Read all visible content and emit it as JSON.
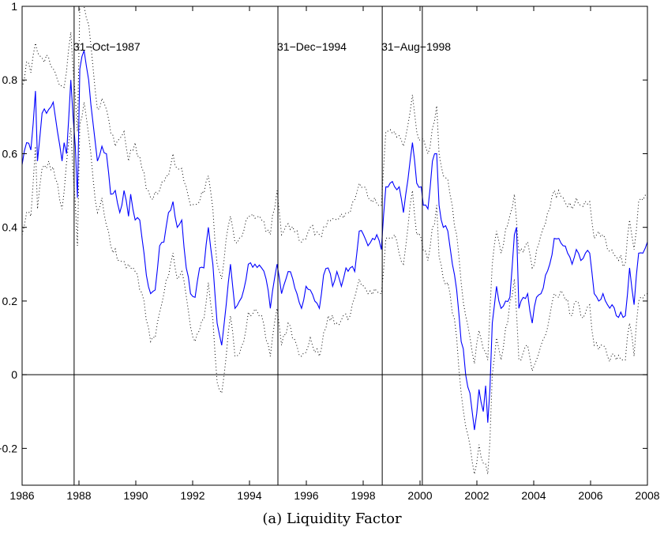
{
  "caption": "(a) Liquidity Factor",
  "colors": {
    "estimate": "#0000ff",
    "band": "#000000",
    "axes": "#000000"
  },
  "chart_data": {
    "type": "line",
    "title": "",
    "xlabel": "",
    "ylabel": "",
    "xlim": [
      1986,
      2008
    ],
    "ylim": [
      -0.3,
      1.0
    ],
    "xticks": [
      1986,
      1988,
      1990,
      1992,
      1994,
      1996,
      1998,
      2000,
      2002,
      2004,
      2006,
      2008
    ],
    "yticks": [
      -0.2,
      0,
      0.2,
      0.4,
      0.6,
      0.8,
      1
    ],
    "ytick_labels": [
      "−0.2",
      "0",
      "0.2",
      "0.4",
      "0.6",
      "0.8",
      "1"
    ],
    "grid": false,
    "zero_line": 0,
    "events": [
      {
        "x": 1987.83,
        "label": "31−Oct−1987"
      },
      {
        "x": 1995.0,
        "label": "31−Dec−1994"
      },
      {
        "x": 1998.67,
        "label": "31−Aug−1998"
      },
      {
        "x": 2000.08,
        "label": ""
      }
    ],
    "anchors": {
      "estimate": [
        [
          1986,
          0.57
        ],
        [
          1986.17,
          0.63
        ],
        [
          1986.33,
          0.61
        ],
        [
          1986.5,
          0.77
        ],
        [
          1986.58,
          0.58
        ],
        [
          1986.75,
          0.71
        ],
        [
          1987,
          0.72
        ],
        [
          1987.17,
          0.74
        ],
        [
          1987.33,
          0.66
        ],
        [
          1987.5,
          0.58
        ],
        [
          1987.58,
          0.63
        ],
        [
          1987.67,
          0.6
        ],
        [
          1987.83,
          0.8
        ],
        [
          1988,
          0.62
        ],
        [
          1988.08,
          0.48
        ],
        [
          1988.17,
          0.83
        ],
        [
          1988.33,
          0.88
        ],
        [
          1988.5,
          0.8
        ],
        [
          1988.67,
          0.68
        ],
        [
          1988.83,
          0.58
        ],
        [
          1989,
          0.62
        ],
        [
          1989.17,
          0.6
        ],
        [
          1989.33,
          0.49
        ],
        [
          1989.5,
          0.5
        ],
        [
          1989.67,
          0.44
        ],
        [
          1989.83,
          0.5
        ],
        [
          1990,
          0.43
        ],
        [
          1990.08,
          0.49
        ],
        [
          1990.25,
          0.42
        ],
        [
          1990.42,
          0.42
        ],
        [
          1990.58,
          0.33
        ],
        [
          1990.67,
          0.27
        ],
        [
          1990.83,
          0.22
        ],
        [
          1991,
          0.23
        ],
        [
          1991.17,
          0.35
        ],
        [
          1991.33,
          0.36
        ],
        [
          1991.5,
          0.44
        ],
        [
          1991.67,
          0.47
        ],
        [
          1991.83,
          0.4
        ],
        [
          1992,
          0.42
        ],
        [
          1992.17,
          0.29
        ],
        [
          1992.33,
          0.22
        ],
        [
          1992.5,
          0.21
        ],
        [
          1992.67,
          0.29
        ],
        [
          1992.83,
          0.29
        ],
        [
          1993,
          0.4
        ],
        [
          1993.17,
          0.3
        ],
        [
          1993.33,
          0.14
        ],
        [
          1993.5,
          0.08
        ],
        [
          1993.67,
          0.19
        ],
        [
          1993.83,
          0.3
        ],
        [
          1994,
          0.18
        ],
        [
          1994.17,
          0.2
        ],
        [
          1994.33,
          0.23
        ],
        [
          1994.5,
          0.3
        ],
        [
          1994.75,
          0.3
        ],
        [
          1995,
          0.29
        ],
        [
          1995.17,
          0.26
        ],
        [
          1995.33,
          0.18
        ],
        [
          1995.58,
          0.3
        ],
        [
          1995.75,
          0.22
        ],
        [
          1996,
          0.28
        ],
        [
          1996.17,
          0.26
        ],
        [
          1996.33,
          0.22
        ],
        [
          1996.5,
          0.18
        ],
        [
          1996.67,
          0.24
        ],
        [
          1996.83,
          0.23
        ],
        [
          1997,
          0.2
        ],
        [
          1997.17,
          0.18
        ],
        [
          1997.33,
          0.27
        ],
        [
          1997.5,
          0.29
        ],
        [
          1997.67,
          0.24
        ],
        [
          1997.83,
          0.28
        ],
        [
          1998,
          0.24
        ],
        [
          1998.17,
          0.29
        ],
        [
          1998.33,
          0.29
        ],
        [
          1998.5,
          0.28
        ],
        [
          1998.67,
          0.39
        ],
        [
          1998.83,
          0.38
        ],
        [
          1999,
          0.35
        ],
        [
          1999.17,
          0.37
        ],
        [
          1999.33,
          0.38
        ],
        [
          1999.5,
          0.34
        ],
        [
          1999.67,
          0.51
        ],
        [
          1999.83,
          0.52
        ],
        [
          2000,
          0.51
        ],
        [
          2000.17,
          0.51
        ],
        [
          2000.33,
          0.44
        ],
        [
          2000.5,
          0.53
        ],
        [
          2000.67,
          0.63
        ],
        [
          2000.83,
          0.52
        ],
        [
          2001,
          0.51
        ],
        [
          2001.08,
          0.46
        ],
        [
          2001.25,
          0.45
        ],
        [
          2001.42,
          0.58
        ],
        [
          2001.58,
          0.6
        ],
        [
          2001.67,
          0.46
        ],
        [
          2001.83,
          0.4
        ],
        [
          2002,
          0.39
        ],
        [
          2002.17,
          0.3
        ],
        [
          2002.33,
          0.23
        ],
        [
          2002.5,
          0.09
        ],
        [
          2002.58,
          0.07
        ],
        [
          2002.67,
          0.0
        ],
        [
          2002.83,
          -0.05
        ],
        [
          2003,
          -0.15
        ],
        [
          2003.17,
          -0.04
        ],
        [
          2003.33,
          -0.1
        ],
        [
          2003.42,
          -0.03
        ],
        [
          2003.5,
          -0.13
        ],
        [
          2003.58,
          -0.04
        ],
        [
          2003.67,
          0.14
        ],
        [
          2003.83,
          0.24
        ],
        [
          2004,
          0.18
        ],
        [
          2004.17,
          0.2
        ],
        [
          2004.33,
          0.21
        ],
        [
          2004.5,
          0.38
        ],
        [
          2004.58,
          0.4
        ],
        [
          2004.67,
          0.18
        ],
        [
          2004.83,
          0.21
        ],
        [
          2005,
          0.22
        ],
        [
          2005.17,
          0.14
        ],
        [
          2005.33,
          0.21
        ],
        [
          2005.5,
          0.22
        ],
        [
          2005.67,
          0.27
        ],
        [
          2005.83,
          0.3
        ],
        [
          2006,
          0.37
        ],
        [
          2006.17,
          0.37
        ],
        [
          2006.33,
          0.35
        ],
        [
          2006.5,
          0.33
        ],
        [
          2006.67,
          0.3
        ],
        [
          2006.83,
          0.34
        ],
        [
          2007,
          0.31
        ],
        [
          2007.17,
          0.33
        ],
        [
          2007.33,
          0.33
        ],
        [
          2007.5,
          0.22
        ],
        [
          2007.67,
          0.2
        ],
        [
          2007.83,
          0.22
        ],
        [
          2008,
          0.19
        ],
        [
          2008.17,
          0.19
        ],
        [
          2008.33,
          0.16
        ],
        [
          2008.5,
          0.17
        ],
        [
          2008.67,
          0.16
        ],
        [
          2008.83,
          0.29
        ],
        [
          2009,
          0.19
        ],
        [
          2009.17,
          0.33
        ],
        [
          2009.33,
          0.33
        ],
        [
          2009.5,
          0.36
        ]
      ],
      "upper": [
        [
          1986,
          0.78
        ],
        [
          1986.17,
          0.85
        ],
        [
          1986.33,
          0.82
        ],
        [
          1986.5,
          0.9
        ],
        [
          1986.75,
          0.86
        ],
        [
          1987,
          0.86
        ],
        [
          1987.33,
          0.8
        ],
        [
          1987.58,
          0.78
        ],
        [
          1987.83,
          0.93
        ],
        [
          1988.08,
          0.66
        ],
        [
          1988.17,
          1.0
        ],
        [
          1988.33,
          1.0
        ],
        [
          1988.5,
          0.95
        ],
        [
          1988.67,
          0.83
        ],
        [
          1988.83,
          0.72
        ],
        [
          1989,
          0.75
        ],
        [
          1989.17,
          0.72
        ],
        [
          1989.5,
          0.62
        ],
        [
          1989.83,
          0.66
        ],
        [
          1990,
          0.58
        ],
        [
          1990.25,
          0.63
        ],
        [
          1990.5,
          0.56
        ],
        [
          1990.83,
          0.48
        ],
        [
          1991.17,
          0.5
        ],
        [
          1991.5,
          0.54
        ],
        [
          1991.67,
          0.6
        ],
        [
          1991.83,
          0.56
        ],
        [
          1992,
          0.56
        ],
        [
          1992.33,
          0.46
        ],
        [
          1992.67,
          0.47
        ],
        [
          1993,
          0.54
        ],
        [
          1993.17,
          0.45
        ],
        [
          1993.33,
          0.3
        ],
        [
          1993.5,
          0.26
        ],
        [
          1993.67,
          0.37
        ],
        [
          1993.83,
          0.43
        ],
        [
          1994,
          0.36
        ],
        [
          1994.33,
          0.39
        ],
        [
          1994.5,
          0.43
        ],
        [
          1995,
          0.42
        ],
        [
          1995.33,
          0.38
        ],
        [
          1995.58,
          0.5
        ],
        [
          1995.75,
          0.38
        ],
        [
          1996,
          0.41
        ],
        [
          1996.5,
          0.36
        ],
        [
          1996.83,
          0.4
        ],
        [
          1997.17,
          0.38
        ],
        [
          1997.5,
          0.42
        ],
        [
          1997.83,
          0.42
        ],
        [
          1998.33,
          0.44
        ],
        [
          1998.67,
          0.52
        ],
        [
          1998.83,
          0.51
        ],
        [
          1999,
          0.48
        ],
        [
          1999.5,
          0.46
        ],
        [
          1999.67,
          0.66
        ],
        [
          2000,
          0.66
        ],
        [
          2000.33,
          0.62
        ],
        [
          2000.67,
          0.76
        ],
        [
          2000.83,
          0.66
        ],
        [
          2001,
          0.64
        ],
        [
          2001.25,
          0.6
        ],
        [
          2001.58,
          0.73
        ],
        [
          2001.67,
          0.6
        ],
        [
          2001.83,
          0.54
        ],
        [
          2002,
          0.53
        ],
        [
          2002.33,
          0.38
        ],
        [
          2002.5,
          0.25
        ],
        [
          2002.67,
          0.16
        ],
        [
          2003,
          0.03
        ],
        [
          2003.17,
          0.12
        ],
        [
          2003.33,
          0.07
        ],
        [
          2003.5,
          0.04
        ],
        [
          2003.67,
          0.3
        ],
        [
          2003.83,
          0.39
        ],
        [
          2004,
          0.33
        ],
        [
          2004.5,
          0.49
        ],
        [
          2004.67,
          0.33
        ],
        [
          2005,
          0.36
        ],
        [
          2005.17,
          0.29
        ],
        [
          2005.5,
          0.38
        ],
        [
          2005.83,
          0.45
        ],
        [
          2006,
          0.5
        ],
        [
          2006.33,
          0.48
        ],
        [
          2006.67,
          0.45
        ],
        [
          2006.83,
          0.48
        ],
        [
          2007,
          0.46
        ],
        [
          2007.33,
          0.47
        ],
        [
          2007.5,
          0.37
        ],
        [
          2007.83,
          0.38
        ],
        [
          2008,
          0.34
        ],
        [
          2008.33,
          0.32
        ],
        [
          2008.67,
          0.3
        ],
        [
          2008.83,
          0.42
        ],
        [
          2009,
          0.34
        ],
        [
          2009.17,
          0.47
        ],
        [
          2009.5,
          0.48
        ]
      ],
      "lower": [
        [
          1986,
          0.38
        ],
        [
          1986.17,
          0.44
        ],
        [
          1986.33,
          0.43
        ],
        [
          1986.5,
          0.62
        ],
        [
          1986.58,
          0.45
        ],
        [
          1986.75,
          0.56
        ],
        [
          1987,
          0.58
        ],
        [
          1987.33,
          0.52
        ],
        [
          1987.5,
          0.45
        ],
        [
          1987.83,
          0.67
        ],
        [
          1988.08,
          0.35
        ],
        [
          1988.17,
          0.68
        ],
        [
          1988.33,
          0.74
        ],
        [
          1988.5,
          0.65
        ],
        [
          1988.67,
          0.53
        ],
        [
          1988.83,
          0.44
        ],
        [
          1989,
          0.48
        ],
        [
          1989.33,
          0.35
        ],
        [
          1989.67,
          0.31
        ],
        [
          1990,
          0.3
        ],
        [
          1990.25,
          0.28
        ],
        [
          1990.58,
          0.2
        ],
        [
          1990.83,
          0.09
        ],
        [
          1991,
          0.1
        ],
        [
          1991.33,
          0.22
        ],
        [
          1991.67,
          0.33
        ],
        [
          1991.83,
          0.26
        ],
        [
          1992,
          0.28
        ],
        [
          1992.33,
          0.13
        ],
        [
          1992.5,
          0.09
        ],
        [
          1992.83,
          0.15
        ],
        [
          1993,
          0.25
        ],
        [
          1993.17,
          0.15
        ],
        [
          1993.33,
          -0.02
        ],
        [
          1993.5,
          -0.05
        ],
        [
          1993.67,
          0.05
        ],
        [
          1993.83,
          0.16
        ],
        [
          1994,
          0.05
        ],
        [
          1994.33,
          0.09
        ],
        [
          1994.5,
          0.17
        ],
        [
          1995,
          0.16
        ],
        [
          1995.33,
          0.05
        ],
        [
          1995.58,
          0.18
        ],
        [
          1995.75,
          0.08
        ],
        [
          1996,
          0.14
        ],
        [
          1996.5,
          0.05
        ],
        [
          1996.83,
          0.1
        ],
        [
          1997.17,
          0.05
        ],
        [
          1997.5,
          0.16
        ],
        [
          1997.83,
          0.14
        ],
        [
          1998.33,
          0.16
        ],
        [
          1998.67,
          0.26
        ],
        [
          1999,
          0.22
        ],
        [
          1999.5,
          0.22
        ],
        [
          1999.67,
          0.37
        ],
        [
          2000,
          0.38
        ],
        [
          2000.33,
          0.3
        ],
        [
          2000.67,
          0.5
        ],
        [
          2000.83,
          0.38
        ],
        [
          2001,
          0.37
        ],
        [
          2001.25,
          0.31
        ],
        [
          2001.58,
          0.46
        ],
        [
          2001.67,
          0.32
        ],
        [
          2001.83,
          0.26
        ],
        [
          2002,
          0.25
        ],
        [
          2002.33,
          0.1
        ],
        [
          2002.5,
          -0.05
        ],
        [
          2002.67,
          -0.14
        ],
        [
          2003,
          -0.27
        ],
        [
          2003.17,
          -0.19
        ],
        [
          2003.33,
          -0.24
        ],
        [
          2003.5,
          -0.27
        ],
        [
          2003.58,
          -0.18
        ],
        [
          2003.67,
          0.0
        ],
        [
          2003.83,
          0.1
        ],
        [
          2004,
          0.04
        ],
        [
          2004.5,
          0.26
        ],
        [
          2004.67,
          0.04
        ],
        [
          2005,
          0.08
        ],
        [
          2005.17,
          0.01
        ],
        [
          2005.5,
          0.08
        ],
        [
          2005.83,
          0.16
        ],
        [
          2006,
          0.22
        ],
        [
          2006.33,
          0.22
        ],
        [
          2006.67,
          0.16
        ],
        [
          2006.83,
          0.2
        ],
        [
          2007,
          0.16
        ],
        [
          2007.33,
          0.19
        ],
        [
          2007.5,
          0.08
        ],
        [
          2007.83,
          0.08
        ],
        [
          2008,
          0.05
        ],
        [
          2008.33,
          0.04
        ],
        [
          2008.67,
          0.04
        ],
        [
          2008.83,
          0.14
        ],
        [
          2009,
          0.05
        ],
        [
          2009.17,
          0.2
        ],
        [
          2009.5,
          0.22
        ]
      ]
    },
    "series": [
      {
        "name": "",
        "role": "estimate",
        "style": "solid"
      },
      {
        "name": "",
        "role": "upper",
        "style": "dotted"
      },
      {
        "name": "",
        "role": "lower",
        "style": "dotted"
      }
    ]
  }
}
